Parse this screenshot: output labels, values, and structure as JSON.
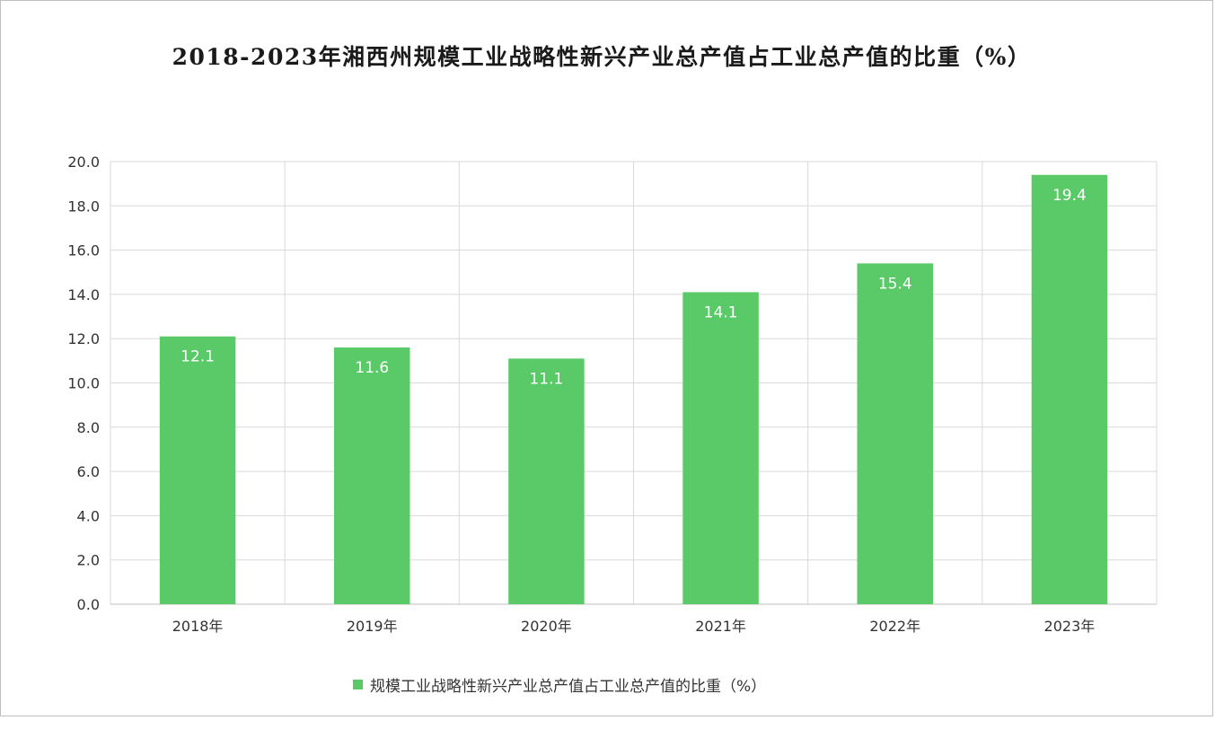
{
  "colors": {
    "bar": "#5ac968",
    "grid": "#d9d9d9",
    "axis": "#bfbfbf",
    "tick_text": "#333333",
    "label_text": "#ffffff"
  },
  "chart_data": {
    "type": "bar",
    "title": "2018-2023年湘西州规模工业战略性新兴产业总产值占工业总产值的比重（%）",
    "categories": [
      "2018年",
      "2019年",
      "2020年",
      "2021年",
      "2022年",
      "2023年"
    ],
    "series": [
      {
        "name": "规模工业战略性新兴产业总产值占工业总产值的比重（%）",
        "values": [
          12.1,
          11.6,
          11.1,
          14.1,
          15.4,
          19.4
        ]
      }
    ],
    "data_labels": [
      "12.1",
      "11.6",
      "11.1",
      "14.1",
      "15.4",
      "19.4"
    ],
    "y_ticks": [
      "0.0",
      "2.0",
      "4.0",
      "6.0",
      "8.0",
      "10.0",
      "12.0",
      "14.0",
      "16.0",
      "18.0",
      "20.0"
    ],
    "ylim": [
      0,
      20
    ],
    "xlabel": "",
    "ylabel": "",
    "grid": true,
    "legend_position": "bottom"
  }
}
